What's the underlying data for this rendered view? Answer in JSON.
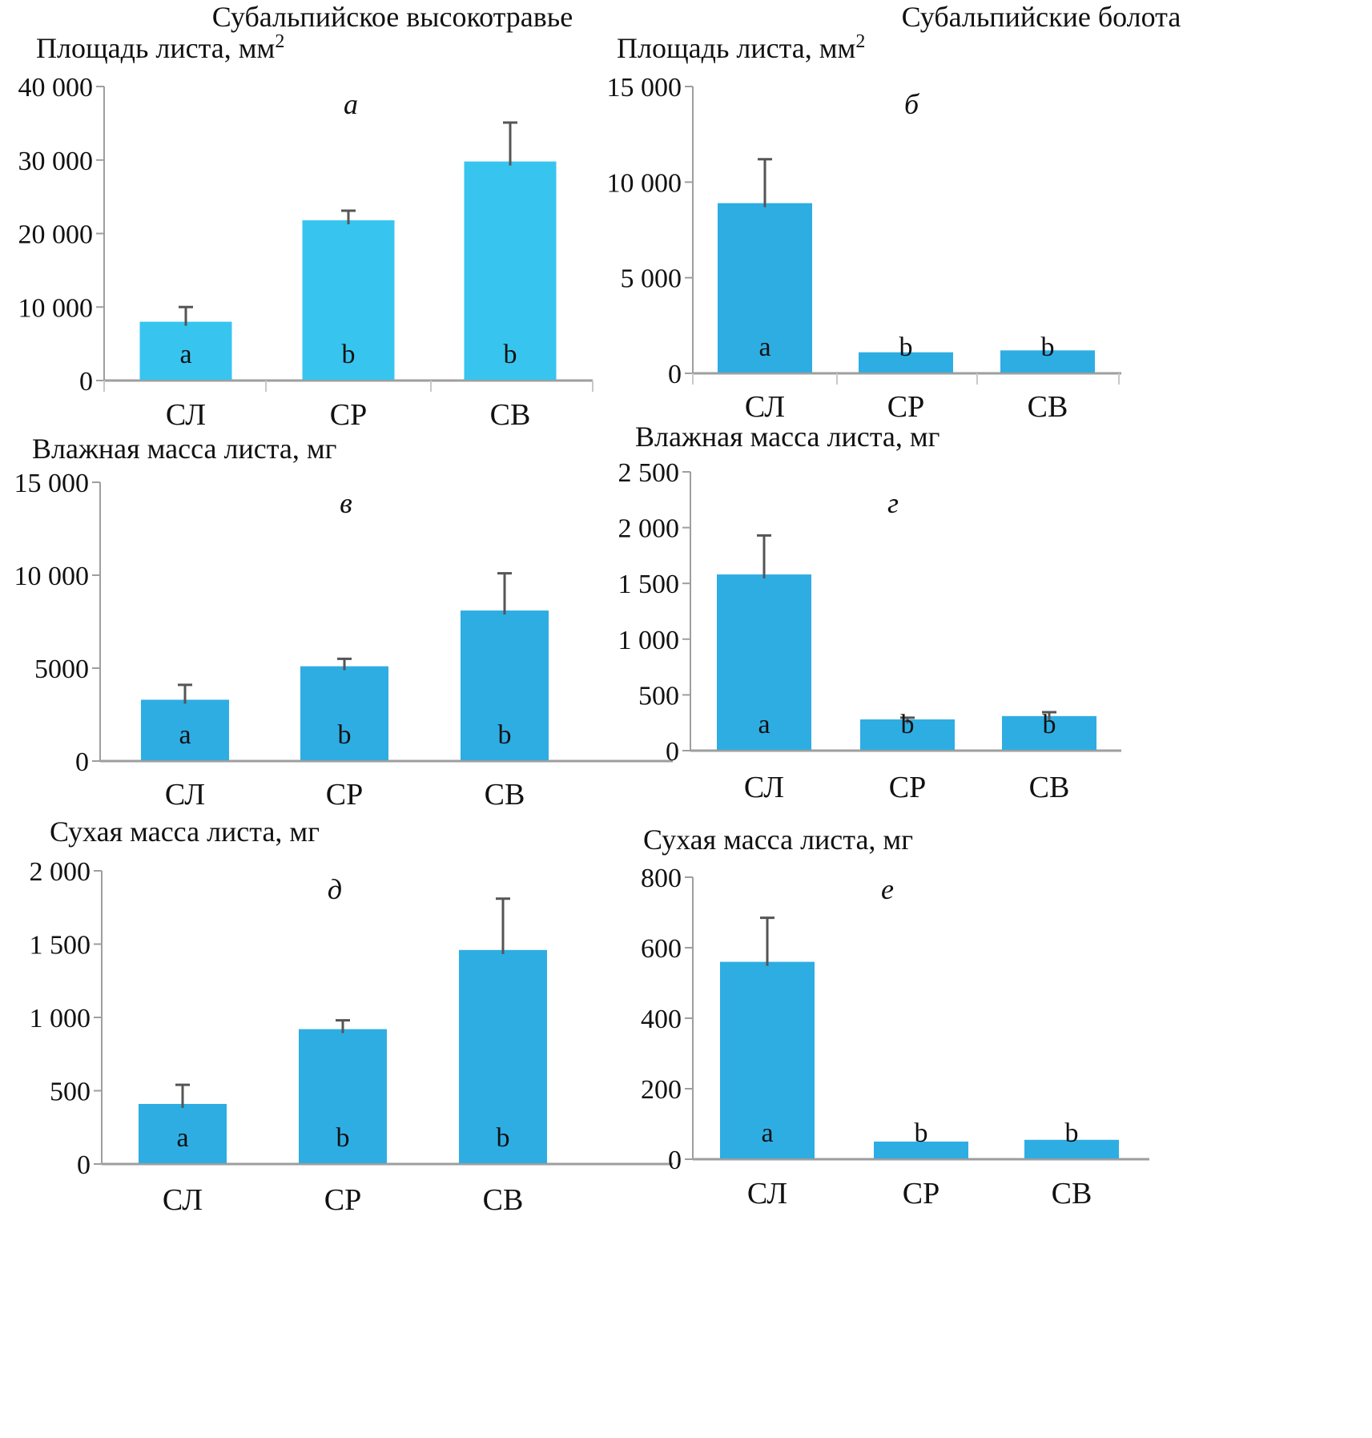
{
  "column_titles": [
    "Субальпийское высокотравье",
    "Субальпийские болота"
  ],
  "colors": {
    "bar": "#2EADE3",
    "bar_light": "#37C5F0",
    "axis": "#9E9E9E",
    "error": "#555555"
  },
  "chart_data": [
    {
      "type": "bar",
      "panel_letter": "а",
      "title": "Субальпийское высокотравье",
      "ylabel": "Площадь листа, мм²",
      "ylabel_main": "Площадь листа, мм",
      "ylabel_sup": "2",
      "xlabel": "",
      "categories": [
        "СЛ",
        "СР",
        "СВ"
      ],
      "values": [
        8000,
        21800,
        29800
      ],
      "errors": [
        2000,
        1300,
        5300
      ],
      "significance": [
        "a",
        "b",
        "b"
      ],
      "ylim": [
        0,
        40000
      ],
      "yticks": [
        0,
        10000,
        20000,
        30000,
        40000
      ],
      "ytick_labels": [
        "0",
        "10 000",
        "20 000",
        "30 000",
        "40 000"
      ],
      "grid": false,
      "color": "#37C5F0"
    },
    {
      "type": "bar",
      "panel_letter": "б",
      "title": "Субальпийские болота",
      "ylabel": "Площадь листа, мм²",
      "ylabel_main": "Площадь листа, мм",
      "ylabel_sup": "2",
      "xlabel": "",
      "categories": [
        "СЛ",
        "СР",
        "СВ"
      ],
      "values": [
        8900,
        1100,
        1200
      ],
      "errors": [
        2300,
        0,
        0
      ],
      "significance": [
        "a",
        "b",
        "b"
      ],
      "ylim": [
        0,
        15000
      ],
      "yticks": [
        0,
        5000,
        10000,
        15000
      ],
      "ytick_labels": [
        "0",
        "5 000",
        "10 000",
        "15 000"
      ],
      "grid": false,
      "color": "#2EADE3"
    },
    {
      "type": "bar",
      "panel_letter": "в",
      "title": "Субальпийское высокотравье",
      "ylabel": "Влажная масса листа, мг",
      "ylabel_main": "Влажная масса листа, мг",
      "ylabel_sup": "",
      "xlabel": "",
      "categories": [
        "СЛ",
        "СР",
        "СВ"
      ],
      "values": [
        3300,
        5100,
        8100
      ],
      "errors": [
        800,
        400,
        2000
      ],
      "significance": [
        "a",
        "b",
        "b"
      ],
      "ylim": [
        0,
        15000
      ],
      "yticks": [
        0,
        5000,
        10000,
        15000
      ],
      "ytick_labels": [
        "0",
        "5000",
        "10 000",
        "15 000"
      ],
      "grid": false,
      "color": "#2EADE3"
    },
    {
      "type": "bar",
      "panel_letter": "г",
      "title": "Субальпийские болота",
      "ylabel": "Влажная масса листа, мг",
      "ylabel_main": "Влажная масса листа, мг",
      "ylabel_sup": "",
      "xlabel": "",
      "categories": [
        "СЛ",
        "СР",
        "СВ"
      ],
      "values": [
        1580,
        280,
        310
      ],
      "errors": [
        350,
        15,
        35
      ],
      "significance": [
        "a",
        "b",
        "b"
      ],
      "ylim": [
        0,
        2500
      ],
      "yticks": [
        0,
        500,
        1000,
        1500,
        2000,
        2500
      ],
      "ytick_labels": [
        "0",
        "500",
        "1 000",
        "1 500",
        "2 000",
        "2 500"
      ],
      "grid": false,
      "color": "#2EADE3"
    },
    {
      "type": "bar",
      "panel_letter": "д",
      "title": "Субальпийское высокотравье",
      "ylabel": "Сухая масса листа, мг",
      "ylabel_main": "Сухая масса листа, мг",
      "ylabel_sup": "",
      "xlabel": "",
      "categories": [
        "СЛ",
        "СР",
        "СВ"
      ],
      "values": [
        410,
        920,
        1460
      ],
      "errors": [
        130,
        60,
        350
      ],
      "significance": [
        "a",
        "b",
        "b"
      ],
      "ylim": [
        0,
        2000
      ],
      "yticks": [
        0,
        500,
        1000,
        1500,
        2000
      ],
      "ytick_labels": [
        "0",
        "500",
        "1 000",
        "1 500",
        "2 000"
      ],
      "grid": false,
      "color": "#2EADE3"
    },
    {
      "type": "bar",
      "panel_letter": "е",
      "title": "Субальпийские болота",
      "ylabel": "Сухая масса листа, мг",
      "ylabel_main": "Сухая масса листа, мг",
      "ylabel_sup": "",
      "xlabel": "",
      "categories": [
        "СЛ",
        "СР",
        "СВ"
      ],
      "values": [
        560,
        50,
        55
      ],
      "errors": [
        125,
        0,
        0
      ],
      "significance": [
        "a",
        "b",
        "b"
      ],
      "ylim": [
        0,
        800
      ],
      "yticks": [
        0,
        200,
        400,
        600,
        800
      ],
      "ytick_labels": [
        "0",
        "200",
        "400",
        "600",
        "800"
      ],
      "grid": false,
      "color": "#2EADE3"
    }
  ]
}
